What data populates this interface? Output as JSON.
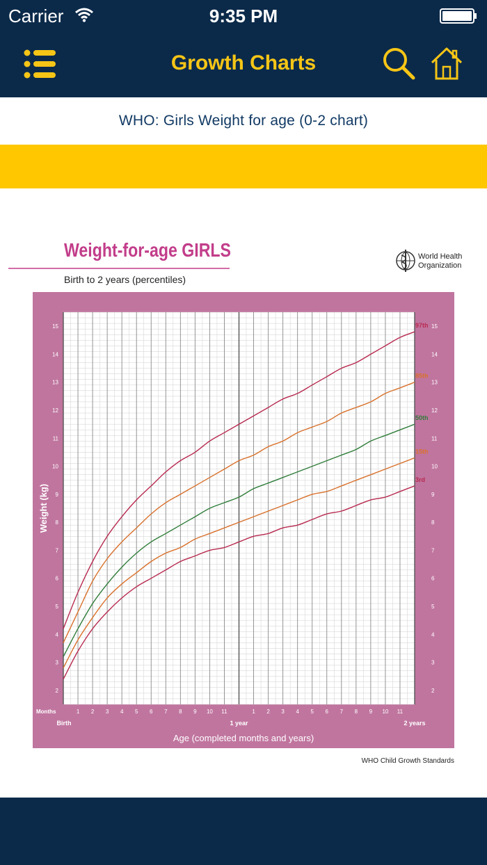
{
  "status_bar": {
    "carrier": "Carrier",
    "time": "9:35 PM",
    "wifi_icon": "wifi-icon",
    "battery_icon": "battery-full-icon"
  },
  "nav": {
    "title": "Growth Charts",
    "menu_icon": "menu-icon",
    "search_icon": "search-icon",
    "home_icon": "home-icon"
  },
  "subtitle": "WHO: Girls Weight for age (0-2 chart)",
  "colors": {
    "nav_background": "#0b2a4a",
    "title_yellow": "#f6c516",
    "band_yellow": "#ffc700",
    "chart_frame_pink": "#c0759f",
    "chart_title_pink": "#c23d8a"
  },
  "chart_header": {
    "title": "Weight-for-age GIRLS",
    "subtitle": "Birth to 2 years (percentiles)",
    "org_line1": "World Health",
    "org_line2": "Organization",
    "org_logo_icon": "who-emblem-icon",
    "footer": "WHO Child Growth Standards"
  },
  "chart_data": {
    "type": "line",
    "title": "Weight-for-age GIRLS",
    "subtitle": "Birth to 2 years (percentiles)",
    "xlabel": "Age (completed months and years)",
    "ylabel": "Weight (kg)",
    "x_axis_title_prefix": "Months",
    "xlim": [
      0,
      24
    ],
    "ylim": [
      1.5,
      15.5
    ],
    "grid": true,
    "x": [
      0,
      1,
      2,
      3,
      4,
      5,
      6,
      7,
      8,
      9,
      10,
      11,
      12,
      13,
      14,
      15,
      16,
      17,
      18,
      19,
      20,
      21,
      22,
      23,
      24
    ],
    "x_tick_labels": [
      "Birth",
      "1",
      "2",
      "3",
      "4",
      "5",
      "6",
      "7",
      "8",
      "9",
      "10",
      "11",
      "1 year",
      "1",
      "2",
      "3",
      "4",
      "5",
      "6",
      "7",
      "8",
      "9",
      "10",
      "11",
      "2 years"
    ],
    "y_ticks": [
      2,
      3,
      4,
      5,
      6,
      7,
      8,
      9,
      10,
      11,
      12,
      13,
      14,
      15
    ],
    "series": [
      {
        "name": "97th",
        "color": "#b8294f",
        "values": [
          4.2,
          5.5,
          6.6,
          7.5,
          8.2,
          8.8,
          9.3,
          9.8,
          10.2,
          10.5,
          10.9,
          11.2,
          11.5,
          11.8,
          12.1,
          12.4,
          12.6,
          12.9,
          13.2,
          13.5,
          13.7,
          14.0,
          14.3,
          14.6,
          14.8
        ]
      },
      {
        "name": "85th",
        "color": "#d9702a",
        "values": [
          3.7,
          4.8,
          5.9,
          6.7,
          7.3,
          7.8,
          8.3,
          8.7,
          9.0,
          9.3,
          9.6,
          9.9,
          10.2,
          10.4,
          10.7,
          10.9,
          11.2,
          11.4,
          11.6,
          11.9,
          12.1,
          12.3,
          12.6,
          12.8,
          13.0
        ]
      },
      {
        "name": "50th",
        "color": "#2f7d3a",
        "values": [
          3.2,
          4.2,
          5.1,
          5.8,
          6.4,
          6.9,
          7.3,
          7.6,
          7.9,
          8.2,
          8.5,
          8.7,
          8.9,
          9.2,
          9.4,
          9.6,
          9.8,
          10.0,
          10.2,
          10.4,
          10.6,
          10.9,
          11.1,
          11.3,
          11.5
        ]
      },
      {
        "name": "15th",
        "color": "#d9702a",
        "values": [
          2.8,
          3.8,
          4.6,
          5.3,
          5.8,
          6.2,
          6.6,
          6.9,
          7.1,
          7.4,
          7.6,
          7.8,
          8.0,
          8.2,
          8.4,
          8.6,
          8.8,
          9.0,
          9.1,
          9.3,
          9.5,
          9.7,
          9.9,
          10.1,
          10.3
        ]
      },
      {
        "name": "3rd",
        "color": "#b8294f",
        "values": [
          2.4,
          3.4,
          4.2,
          4.8,
          5.3,
          5.7,
          6.0,
          6.3,
          6.6,
          6.8,
          7.0,
          7.1,
          7.3,
          7.5,
          7.6,
          7.8,
          7.9,
          8.1,
          8.3,
          8.4,
          8.6,
          8.8,
          8.9,
          9.1,
          9.3
        ]
      }
    ]
  }
}
